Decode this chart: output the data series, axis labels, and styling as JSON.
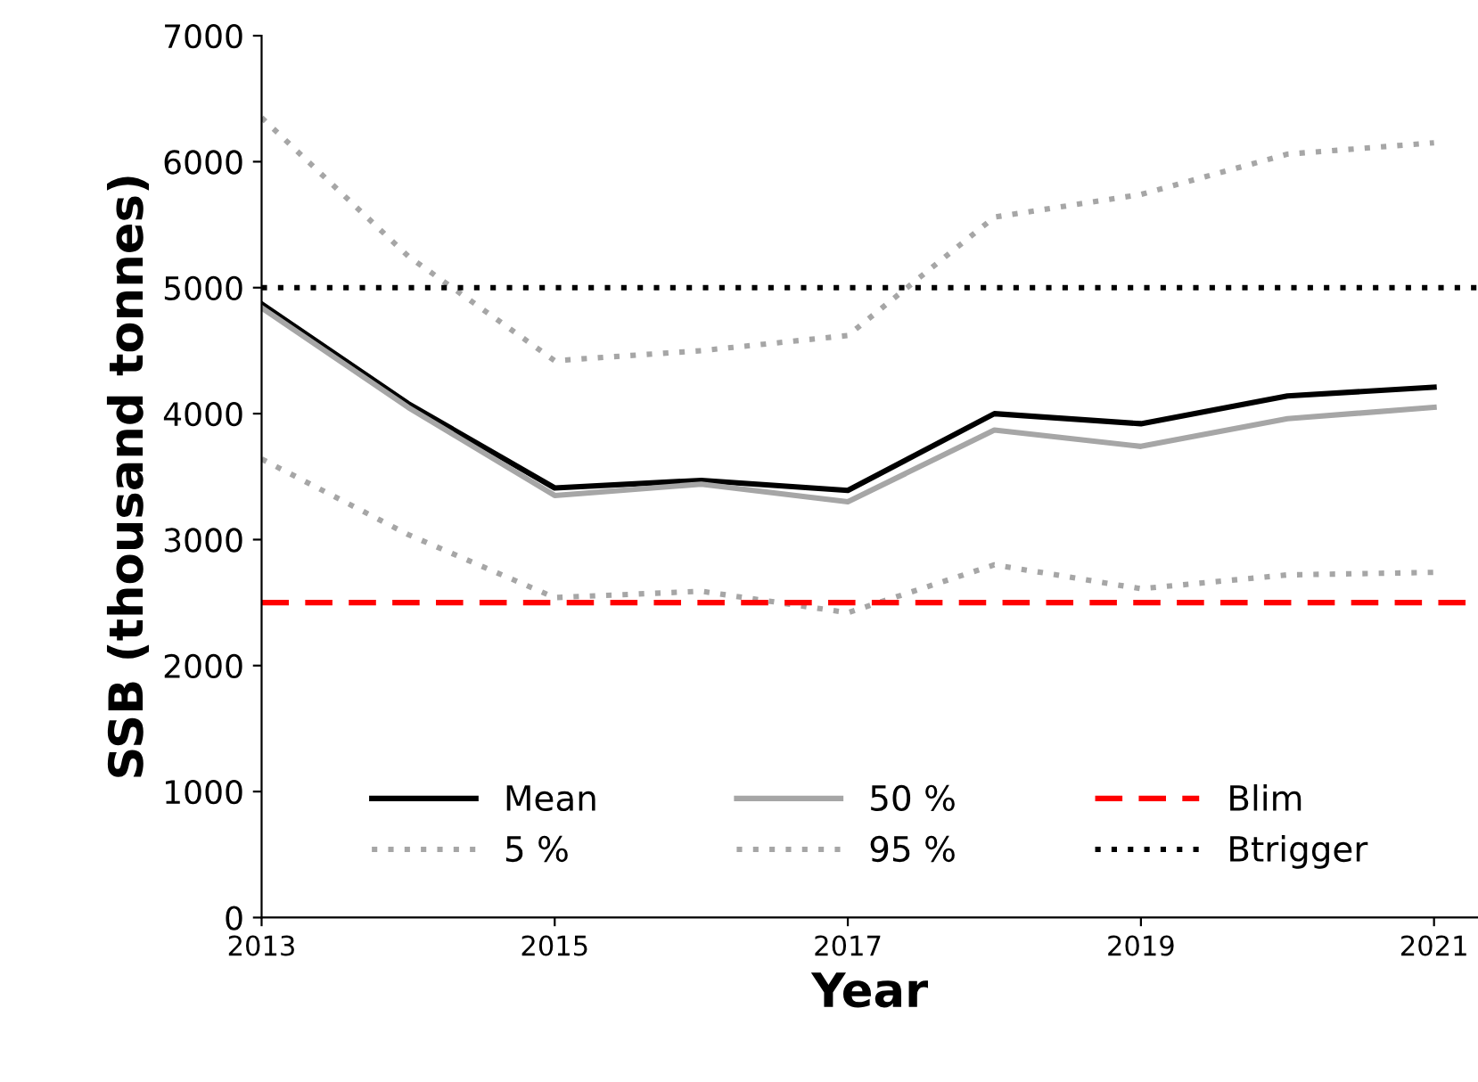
{
  "chart_data": {
    "type": "line",
    "xlabel": "Year",
    "ylabel": "SSB (thousand tonnes)",
    "x": [
      2013,
      2014,
      2015,
      2016,
      2017,
      2018,
      2019,
      2020,
      2021
    ],
    "series": [
      {
        "name": "Mean",
        "color": "#000000",
        "line_style": "solid",
        "values": [
          4870,
          4080,
          3410,
          3470,
          3390,
          4000,
          3920,
          4140,
          4210
        ]
      },
      {
        "name": "5 %",
        "color": "#a6a6a6",
        "line_style": "dotted",
        "values": [
          3640,
          3040,
          2540,
          2590,
          2420,
          2800,
          2610,
          2720,
          2740
        ]
      },
      {
        "name": "50 %",
        "color": "#a6a6a6",
        "line_style": "solid",
        "values": [
          4840,
          4050,
          3350,
          3440,
          3300,
          3870,
          3740,
          3960,
          4050
        ]
      },
      {
        "name": "95 %",
        "color": "#a6a6a6",
        "line_style": "dotted",
        "values": [
          6350,
          5250,
          4420,
          4500,
          4620,
          5560,
          5740,
          6060,
          6150
        ]
      }
    ],
    "ref_lines": [
      {
        "axis": "y",
        "value": 2500,
        "label": "Blim",
        "color": "#ff0000",
        "line_style": "dashed"
      },
      {
        "axis": "y",
        "value": 5000,
        "label": "Btrigger",
        "color": "#000000",
        "line_style": "dotted"
      }
    ],
    "xlim": [
      2013,
      2021.3
    ],
    "xticks": [
      2013,
      2015,
      2017,
      2019,
      2021
    ],
    "ylim": [
      0,
      7000
    ],
    "yticks": [
      0,
      1000,
      2000,
      3000,
      4000,
      5000,
      6000,
      7000
    ],
    "legend": "bottom",
    "marker": "none"
  }
}
